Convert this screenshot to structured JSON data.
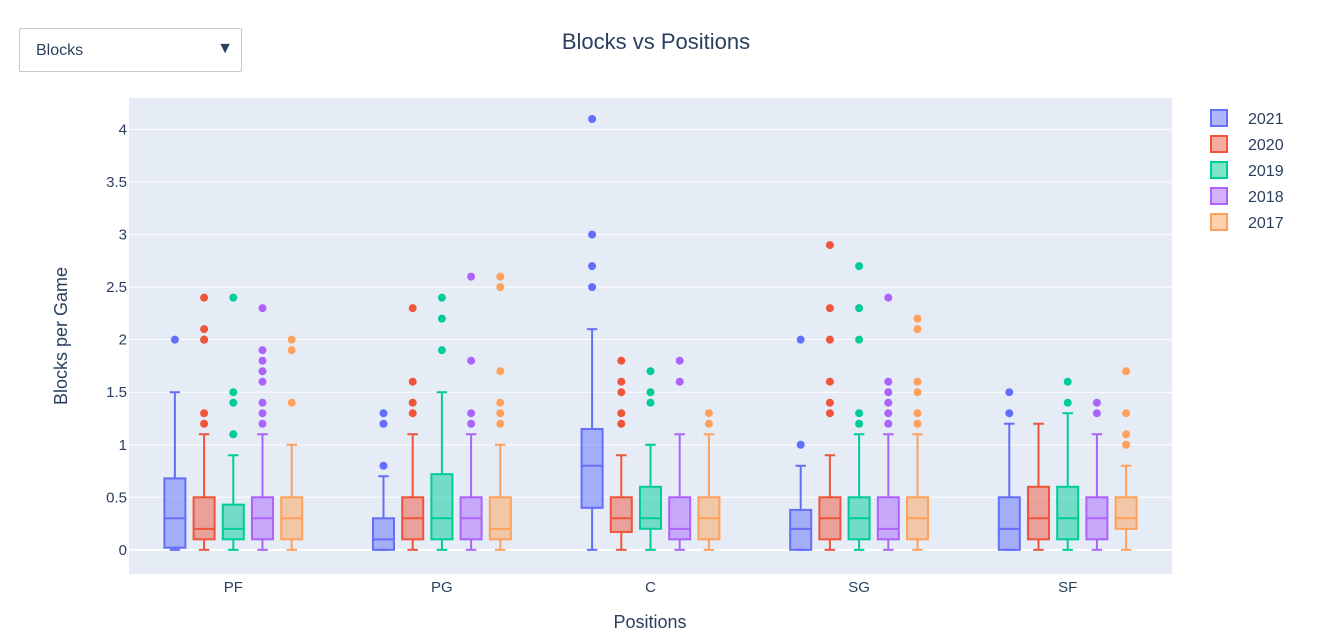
{
  "dropdown": {
    "selected": "Blocks",
    "arrow": "▼"
  },
  "colors": {
    "plot_bg": "#e5ecf6",
    "grid": "#ffffff",
    "text": "#2a3f5f"
  },
  "chart_data": {
    "type": "box",
    "title": "Blocks vs Positions",
    "xlabel": "Positions",
    "ylabel": "Blocks per Game",
    "categories": [
      "PF",
      "PG",
      "C",
      "SG",
      "SF"
    ],
    "ylim": [
      -0.23,
      4.3
    ],
    "yticks": [
      0,
      0.5,
      1,
      1.5,
      2,
      2.5,
      3,
      3.5,
      4
    ],
    "ytick_labels": [
      "0",
      "0.5",
      "1",
      "1.5",
      "2",
      "2.5",
      "3",
      "3.5",
      "4"
    ],
    "grid": true,
    "legend_position": "top-right",
    "series": [
      {
        "name": "2021",
        "color": "#636efa",
        "boxes": [
          {
            "category": "PF",
            "min": 0,
            "q1": 0.02,
            "median": 0.3,
            "q3": 0.68,
            "max": 1.5,
            "outliers": [
              2.0
            ]
          },
          {
            "category": "PG",
            "min": 0,
            "q1": 0,
            "median": 0.1,
            "q3": 0.3,
            "max": 0.7,
            "outliers": [
              0.8,
              1.2,
              1.3
            ]
          },
          {
            "category": "C",
            "min": 0,
            "q1": 0.4,
            "median": 0.8,
            "q3": 1.15,
            "max": 2.1,
            "outliers": [
              2.5,
              2.7,
              3.0,
              4.1
            ]
          },
          {
            "category": "SG",
            "min": 0,
            "q1": 0,
            "median": 0.2,
            "q3": 0.38,
            "max": 0.8,
            "outliers": [
              1.0,
              2.0
            ]
          },
          {
            "category": "SF",
            "min": 0,
            "q1": 0,
            "median": 0.2,
            "q3": 0.5,
            "max": 1.2,
            "outliers": [
              1.3,
              1.5
            ]
          }
        ]
      },
      {
        "name": "2020",
        "color": "#ef553b",
        "boxes": [
          {
            "category": "PF",
            "min": 0,
            "q1": 0.1,
            "median": 0.2,
            "q3": 0.5,
            "max": 1.1,
            "outliers": [
              1.2,
              1.3,
              2.0,
              2.0,
              2.1,
              2.4
            ]
          },
          {
            "category": "PG",
            "min": 0,
            "q1": 0.1,
            "median": 0.3,
            "q3": 0.5,
            "max": 1.1,
            "outliers": [
              1.3,
              1.4,
              1.6,
              2.3
            ]
          },
          {
            "category": "C",
            "min": 0,
            "q1": 0.17,
            "median": 0.3,
            "q3": 0.5,
            "max": 0.9,
            "outliers": [
              1.2,
              1.3,
              1.5,
              1.6,
              1.8
            ]
          },
          {
            "category": "SG",
            "min": 0,
            "q1": 0.1,
            "median": 0.3,
            "q3": 0.5,
            "max": 0.9,
            "outliers": [
              1.3,
              1.4,
              1.6,
              2.0,
              2.3,
              2.9
            ]
          },
          {
            "category": "SF",
            "min": 0,
            "q1": 0.1,
            "median": 0.3,
            "q3": 0.6,
            "max": 1.2,
            "outliers": []
          }
        ]
      },
      {
        "name": "2019",
        "color": "#00cc96",
        "boxes": [
          {
            "category": "PF",
            "min": 0,
            "q1": 0.1,
            "median": 0.2,
            "q3": 0.43,
            "max": 0.9,
            "outliers": [
              1.1,
              1.4,
              1.5,
              2.4
            ]
          },
          {
            "category": "PG",
            "min": 0,
            "q1": 0.1,
            "median": 0.3,
            "q3": 0.72,
            "max": 1.5,
            "outliers": [
              1.9,
              2.2,
              2.4
            ]
          },
          {
            "category": "C",
            "min": 0,
            "q1": 0.2,
            "median": 0.3,
            "q3": 0.6,
            "max": 1.0,
            "outliers": [
              1.4,
              1.5,
              1.7
            ]
          },
          {
            "category": "SG",
            "min": 0,
            "q1": 0.1,
            "median": 0.3,
            "q3": 0.5,
            "max": 1.1,
            "outliers": [
              1.2,
              1.3,
              2.0,
              2.3,
              2.7
            ]
          },
          {
            "category": "SF",
            "min": 0,
            "q1": 0.1,
            "median": 0.3,
            "q3": 0.6,
            "max": 1.3,
            "outliers": [
              1.4,
              1.6
            ]
          }
        ]
      },
      {
        "name": "2018",
        "color": "#ab63fa",
        "boxes": [
          {
            "category": "PF",
            "min": 0,
            "q1": 0.1,
            "median": 0.3,
            "q3": 0.5,
            "max": 1.1,
            "outliers": [
              1.2,
              1.3,
              1.4,
              1.6,
              1.7,
              1.8,
              1.9,
              2.3
            ]
          },
          {
            "category": "PG",
            "min": 0,
            "q1": 0.1,
            "median": 0.3,
            "q3": 0.5,
            "max": 1.1,
            "outliers": [
              1.2,
              1.3,
              1.8,
              2.6
            ]
          },
          {
            "category": "C",
            "min": 0,
            "q1": 0.1,
            "median": 0.2,
            "q3": 0.5,
            "max": 1.1,
            "outliers": [
              1.6,
              1.8
            ]
          },
          {
            "category": "SG",
            "min": 0,
            "q1": 0.1,
            "median": 0.2,
            "q3": 0.5,
            "max": 1.1,
            "outliers": [
              1.2,
              1.3,
              1.4,
              1.5,
              1.6,
              2.4
            ]
          },
          {
            "category": "SF",
            "min": 0,
            "q1": 0.1,
            "median": 0.3,
            "q3": 0.5,
            "max": 1.1,
            "outliers": [
              1.3,
              1.4
            ]
          }
        ]
      },
      {
        "name": "2017",
        "color": "#ffa15a",
        "boxes": [
          {
            "category": "PF",
            "min": 0,
            "q1": 0.1,
            "median": 0.3,
            "q3": 0.5,
            "max": 1.0,
            "outliers": [
              1.4,
              1.9,
              2.0
            ]
          },
          {
            "category": "PG",
            "min": 0,
            "q1": 0.1,
            "median": 0.2,
            "q3": 0.5,
            "max": 1.0,
            "outliers": [
              1.2,
              1.3,
              1.4,
              1.7,
              2.5,
              2.6
            ]
          },
          {
            "category": "C",
            "min": 0,
            "q1": 0.1,
            "median": 0.3,
            "q3": 0.5,
            "max": 1.1,
            "outliers": [
              1.2,
              1.3
            ]
          },
          {
            "category": "SG",
            "min": 0,
            "q1": 0.1,
            "median": 0.3,
            "q3": 0.5,
            "max": 1.1,
            "outliers": [
              1.2,
              1.3,
              1.5,
              1.6,
              2.1,
              2.2
            ]
          },
          {
            "category": "SF",
            "min": 0,
            "q1": 0.2,
            "median": 0.3,
            "q3": 0.5,
            "max": 0.8,
            "outliers": [
              1.0,
              1.1,
              1.3,
              1.7
            ]
          }
        ]
      }
    ]
  }
}
